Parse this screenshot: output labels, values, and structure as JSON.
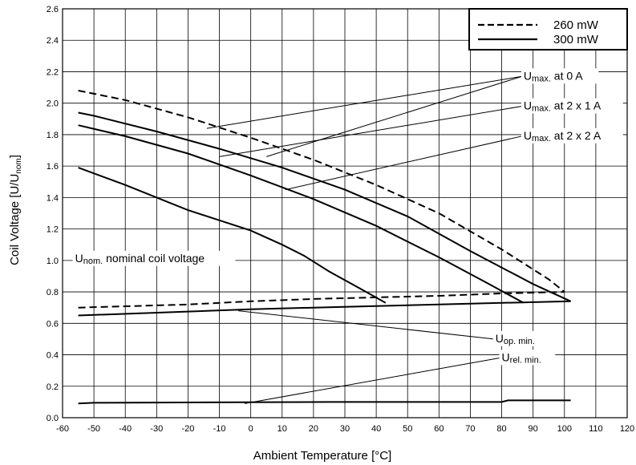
{
  "chart_data": {
    "type": "line",
    "xlabel": "Ambient Temperature [°C]",
    "ylabel": "Coil Voltage [U/U",
    "ylabel_sub": "nom",
    "ylabel_end": "]",
    "xlim": [
      -60,
      120
    ],
    "ylim": [
      0,
      2.6
    ],
    "x_ticks": [
      "-60",
      "-50",
      "-40",
      "-30",
      "-20",
      "-10",
      "0",
      "10",
      "20",
      "30",
      "40",
      "50",
      "60",
      "70",
      "80",
      "90",
      "100",
      "110",
      "120"
    ],
    "y_ticks": [
      "0.0",
      "0.2",
      "0.4",
      "0.6",
      "0.8",
      "1.0",
      "1.2",
      "1.4",
      "1.6",
      "1.8",
      "2.0",
      "2.2",
      "2.4",
      "2.6"
    ],
    "grid": true,
    "legend": {
      "placement": "top-right",
      "entries": [
        {
          "label": "260 mW",
          "style": "dashed"
        },
        {
          "label": "300 mW",
          "style": "solid"
        }
      ]
    },
    "series": [
      {
        "style": "dashed",
        "points": [
          [
            -55,
            2.08
          ],
          [
            -40,
            2.02
          ],
          [
            -20,
            1.91
          ],
          [
            0,
            1.78
          ],
          [
            20,
            1.64
          ],
          [
            40,
            1.48
          ],
          [
            60,
            1.3
          ],
          [
            80,
            1.07
          ],
          [
            95,
            0.88
          ],
          [
            100,
            0.8
          ]
        ]
      },
      {
        "style": "solid",
        "points": [
          [
            -55,
            1.94
          ],
          [
            -50,
            1.92
          ],
          [
            -30,
            1.82
          ],
          [
            -10,
            1.71
          ],
          [
            10,
            1.59
          ],
          [
            30,
            1.45
          ],
          [
            50,
            1.28
          ],
          [
            70,
            1.06
          ],
          [
            90,
            0.85
          ],
          [
            102,
            0.74
          ]
        ]
      },
      {
        "style": "solid",
        "points": [
          [
            -55,
            1.86
          ],
          [
            -40,
            1.79
          ],
          [
            -20,
            1.68
          ],
          [
            0,
            1.54
          ],
          [
            20,
            1.39
          ],
          [
            40,
            1.22
          ],
          [
            60,
            1.02
          ],
          [
            75,
            0.86
          ],
          [
            87,
            0.73
          ]
        ]
      },
      {
        "style": "solid",
        "points": [
          [
            -55,
            1.59
          ],
          [
            -40,
            1.48
          ],
          [
            -20,
            1.32
          ],
          [
            0,
            1.19
          ],
          [
            10,
            1.1
          ],
          [
            17,
            1.03
          ],
          [
            25,
            0.93
          ],
          [
            35,
            0.82
          ],
          [
            43,
            0.73
          ]
        ]
      },
      {
        "style": "dashed",
        "points": [
          [
            -55,
            0.7
          ],
          [
            -20,
            0.72
          ],
          [
            0,
            0.74
          ],
          [
            20,
            0.755
          ],
          [
            40,
            0.765
          ],
          [
            60,
            0.775
          ],
          [
            80,
            0.79
          ],
          [
            100,
            0.8
          ]
        ]
      },
      {
        "style": "solid",
        "points": [
          [
            -55,
            0.65
          ],
          [
            -20,
            0.675
          ],
          [
            0,
            0.69
          ],
          [
            20,
            0.7
          ],
          [
            40,
            0.71
          ],
          [
            60,
            0.72
          ],
          [
            80,
            0.73
          ],
          [
            102,
            0.74
          ]
        ]
      },
      {
        "style": "solid",
        "points": [
          [
            -55,
            0.09
          ],
          [
            -50,
            0.095
          ],
          [
            25,
            0.1
          ],
          [
            80,
            0.1
          ],
          [
            82,
            0.11
          ],
          [
            102,
            0.11
          ]
        ]
      }
    ],
    "annotations": [
      {
        "main": "U",
        "sub": "max.",
        "rest": " at 0 A",
        "label_at": [
          87,
          2.15
        ],
        "targets": [
          [
            -14,
            1.84
          ],
          [
            5,
            1.66
          ]
        ]
      },
      {
        "main": "U",
        "sub": "max.",
        "rest": " at 2 x 1 A",
        "label_at": [
          87,
          1.96
        ],
        "targets": [
          [
            -10,
            1.66
          ]
        ]
      },
      {
        "main": "U",
        "sub": "max.",
        "rest": " at 2 x 2 A",
        "label_at": [
          87,
          1.77
        ],
        "targets": [
          [
            11,
            1.45
          ]
        ]
      },
      {
        "main": "U",
        "sub": "nom.",
        "rest": " nominal coil voltage",
        "label_at": [
          -56,
          0.99
        ],
        "targets": []
      },
      {
        "main": "U",
        "sub": "op. min.",
        "rest": "",
        "label_at": [
          78,
          0.48
        ],
        "targets": [
          [
            -4,
            0.68
          ]
        ]
      },
      {
        "main": "U",
        "sub": "rel. min.",
        "rest": "",
        "label_at": [
          80,
          0.36
        ],
        "targets": [
          [
            -2,
            0.09
          ]
        ]
      }
    ]
  }
}
